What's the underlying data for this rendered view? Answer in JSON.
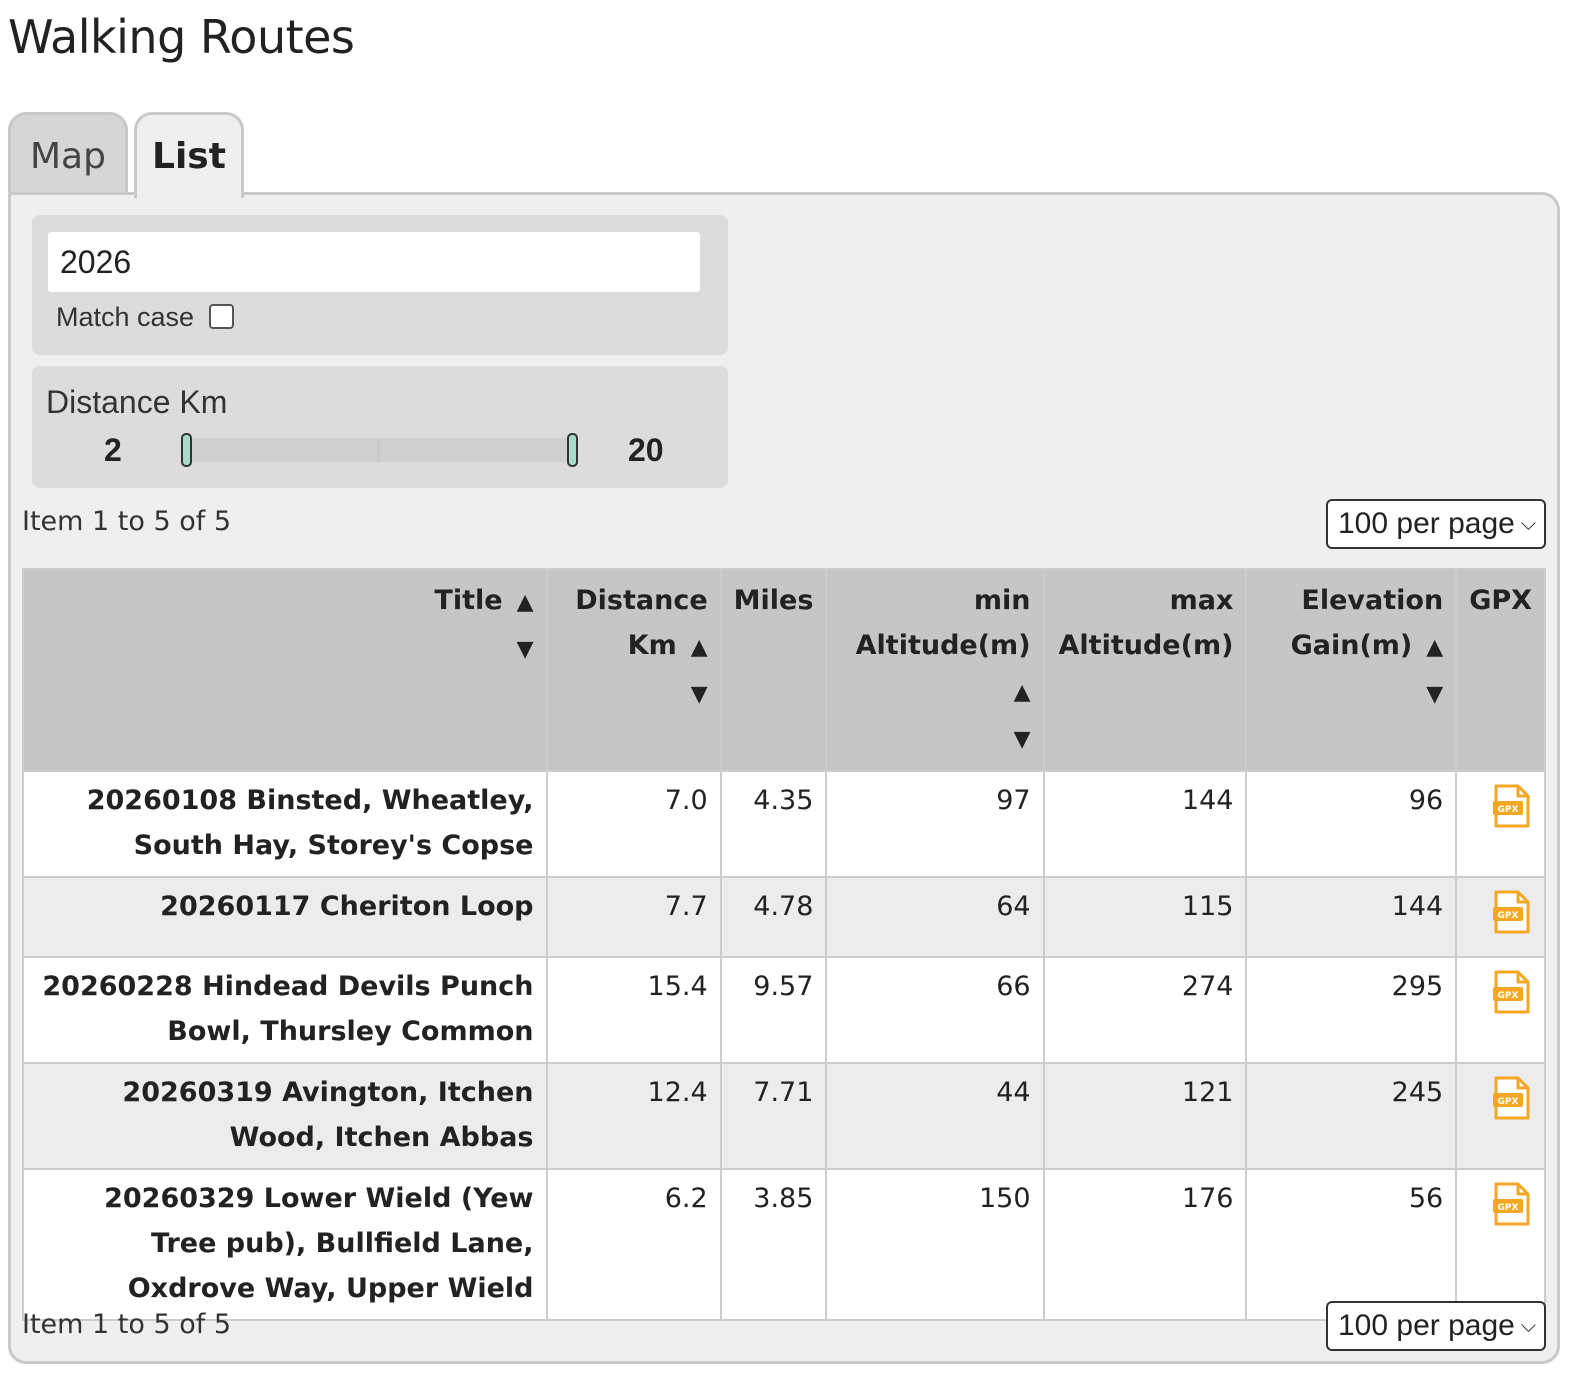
{
  "page": {
    "title": "Walking Routes"
  },
  "tabs": [
    {
      "label": "Map"
    },
    {
      "label": "List"
    }
  ],
  "filters": {
    "search_value": "2026",
    "match_case_label": "Match case",
    "distance_label": "Distance Km",
    "range_min": "2",
    "range_max": "20",
    "slider_min_fraction": 0.0,
    "slider_max_fraction": 1.0
  },
  "pagination": {
    "top_count": "Item 1 to 5 of 5",
    "bottom_count": "Item 1 to 5 of 5",
    "per_page": "100 per page"
  },
  "table": {
    "headers": {
      "title": "Title",
      "distance_1": "Distance",
      "distance_2": "Km",
      "miles": "Miles",
      "min_1": "min",
      "min_2": "Altitude(m)",
      "max_1": "max",
      "max_2": "Altitude(m)",
      "elev_1": "Elevation",
      "elev_2": "Gain(m)",
      "gpx": "GPX"
    },
    "rows": [
      {
        "title": "20260108 Binsted, Wheatley, South Hay, Storey's Copse",
        "km": "7.0",
        "miles": "4.35",
        "min": "97",
        "max": "144",
        "gain": "96"
      },
      {
        "title": "20260117 Cheriton Loop",
        "km": "7.7",
        "miles": "4.78",
        "min": "64",
        "max": "115",
        "gain": "144"
      },
      {
        "title": "20260228 Hindead Devils Punch Bowl, Thursley Common",
        "km": "15.4",
        "miles": "9.57",
        "min": "66",
        "max": "274",
        "gain": "295"
      },
      {
        "title": "20260319 Avington, Itchen Wood, Itchen Abbas",
        "km": "12.4",
        "miles": "7.71",
        "min": "44",
        "max": "121",
        "gain": "245"
      },
      {
        "title": "20260329 Lower Wield (Yew Tree pub), Bullfield Lane, Oxdrove Way, Upper Wield",
        "km": "6.2",
        "miles": "3.85",
        "min": "150",
        "max": "176",
        "gain": "56"
      }
    ],
    "gpx_icon_text": "GPX",
    "gpx_icon_color": "#f5a623"
  }
}
